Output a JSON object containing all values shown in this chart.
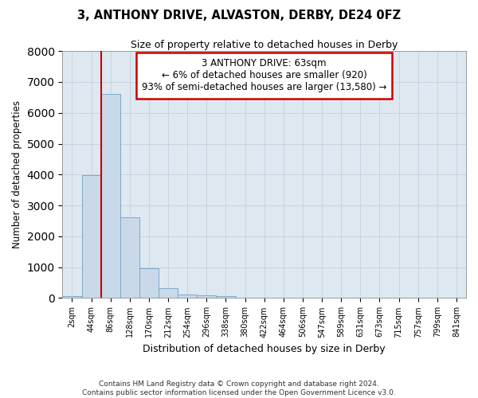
{
  "title": "3, ANTHONY DRIVE, ALVASTON, DERBY, DE24 0FZ",
  "subtitle": "Size of property relative to detached houses in Derby",
  "xlabel": "Distribution of detached houses by size in Derby",
  "ylabel": "Number of detached properties",
  "bar_labels": [
    "2sqm",
    "44sqm",
    "86sqm",
    "128sqm",
    "170sqm",
    "212sqm",
    "254sqm",
    "296sqm",
    "338sqm",
    "380sqm",
    "422sqm",
    "464sqm",
    "506sqm",
    "547sqm",
    "589sqm",
    "631sqm",
    "673sqm",
    "715sqm",
    "757sqm",
    "799sqm",
    "841sqm"
  ],
  "bar_values": [
    75,
    3980,
    6600,
    2620,
    960,
    325,
    120,
    80,
    75,
    0,
    0,
    0,
    0,
    0,
    0,
    0,
    0,
    0,
    0,
    0,
    0
  ],
  "bar_color": "#c9d9ea",
  "bar_edge_color": "#7aaac8",
  "ylim": [
    0,
    8000
  ],
  "yticks": [
    0,
    1000,
    2000,
    3000,
    4000,
    5000,
    6000,
    7000,
    8000
  ],
  "property_line_color": "#cc0000",
  "annotation_line1": "3 ANTHONY DRIVE: 63sqm",
  "annotation_line2": "← 6% of detached houses are smaller (920)",
  "annotation_line3": "93% of semi-detached houses are larger (13,580) →",
  "annotation_box_color": "#ffffff",
  "annotation_box_edge": "#cc0000",
  "grid_color": "#c5d0dc",
  "background_color": "#dde8f0",
  "footer1": "Contains HM Land Registry data © Crown copyright and database right 2024.",
  "footer2": "Contains public sector information licensed under the Open Government Licence v3.0."
}
